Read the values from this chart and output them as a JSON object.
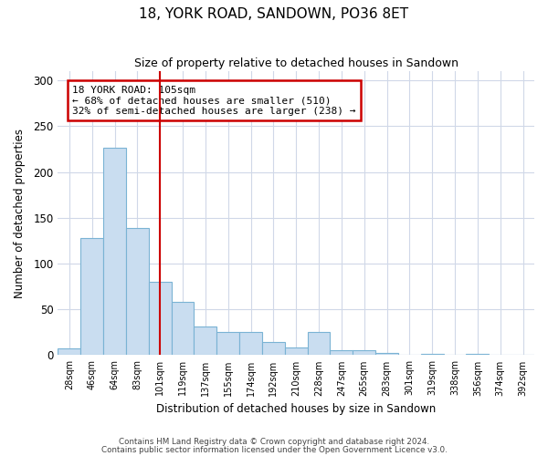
{
  "title": "18, YORK ROAD, SANDOWN, PO36 8ET",
  "subtitle": "Size of property relative to detached houses in Sandown",
  "xlabel": "Distribution of detached houses by size in Sandown",
  "ylabel": "Number of detached properties",
  "bin_labels": [
    "28sqm",
    "46sqm",
    "64sqm",
    "83sqm",
    "101sqm",
    "119sqm",
    "137sqm",
    "155sqm",
    "174sqm",
    "192sqm",
    "210sqm",
    "228sqm",
    "247sqm",
    "265sqm",
    "283sqm",
    "301sqm",
    "319sqm",
    "338sqm",
    "356sqm",
    "374sqm",
    "392sqm"
  ],
  "bar_heights": [
    7,
    128,
    226,
    139,
    80,
    58,
    31,
    25,
    25,
    14,
    8,
    25,
    5,
    5,
    2,
    0,
    1,
    0,
    1,
    0,
    0
  ],
  "bar_color": "#c9ddf0",
  "bar_edge_color": "#7ab3d4",
  "vline_color": "#cc0000",
  "vline_pos": 4.5,
  "annotation_text": "18 YORK ROAD: 105sqm\n← 68% of detached houses are smaller (510)\n32% of semi-detached houses are larger (238) →",
  "annotation_box_color": "#ffffff",
  "annotation_box_edge": "#cc0000",
  "ylim": [
    0,
    310
  ],
  "yticks": [
    0,
    50,
    100,
    150,
    200,
    250,
    300
  ],
  "footer_line1": "Contains HM Land Registry data © Crown copyright and database right 2024.",
  "footer_line2": "Contains public sector information licensed under the Open Government Licence v3.0.",
  "bg_color": "#ffffff",
  "plot_bg_color": "#ffffff",
  "grid_color": "#d0d8e8"
}
